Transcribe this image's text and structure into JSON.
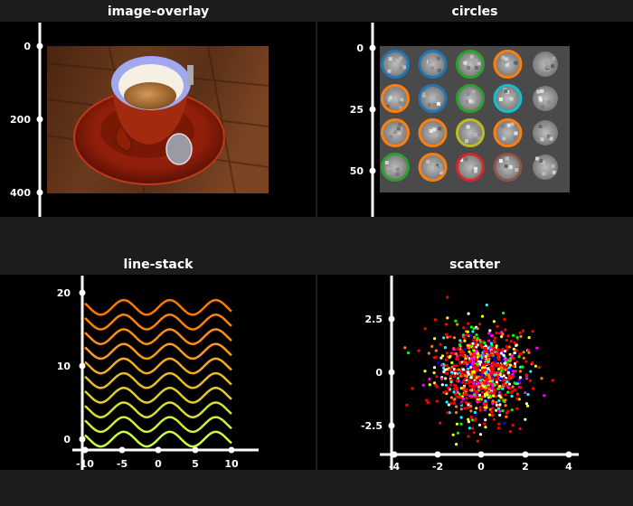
{
  "colors": {
    "figure_bg": "#1c1c1c",
    "panel_bg": "#000000",
    "axis": "#ffffff",
    "text": "#ffffff",
    "circle_palette": [
      "#1f77b4",
      "#ff7f0e",
      "#2ca02c",
      "#d62728",
      "#17becf",
      "#bcbd22",
      "#8c564b"
    ],
    "scatter_palette": [
      "#ff0000",
      "#ffff00",
      "#ff7f0e",
      "#00ffff",
      "#ff00ff",
      "#0000ff",
      "#00ff00",
      "#ffffff"
    ],
    "line_stack_gradient": [
      "#c8ff46",
      "#ff9619",
      "#ff7800"
    ]
  },
  "chart_data": [
    {
      "type": "image",
      "title": "image-overlay",
      "image_description_icon": "coffee-cup-photo",
      "y_ticks": [
        0,
        200,
        400
      ],
      "ylim": [
        0,
        420
      ],
      "xlabel": "",
      "ylabel": ""
    },
    {
      "type": "scatter",
      "title": "circles",
      "background": "grayscale digit-image grid (4 rows x 5 columns)",
      "y_ticks": [
        0,
        25,
        50
      ],
      "ylim": [
        0,
        62
      ],
      "circles": [
        {
          "row": 0,
          "col": 0,
          "color": "#1f77b4"
        },
        {
          "row": 0,
          "col": 1,
          "color": "#1f77b4"
        },
        {
          "row": 0,
          "col": 2,
          "color": "#2ca02c"
        },
        {
          "row": 0,
          "col": 3,
          "color": "#ff7f0e"
        },
        {
          "row": 1,
          "col": 0,
          "color": "#ff7f0e"
        },
        {
          "row": 1,
          "col": 1,
          "color": "#1f77b4"
        },
        {
          "row": 1,
          "col": 2,
          "color": "#2ca02c"
        },
        {
          "row": 1,
          "col": 3,
          "color": "#17becf"
        },
        {
          "row": 2,
          "col": 0,
          "color": "#ff7f0e"
        },
        {
          "row": 2,
          "col": 1,
          "color": "#ff7f0e"
        },
        {
          "row": 2,
          "col": 2,
          "color": "#bcbd22"
        },
        {
          "row": 2,
          "col": 3,
          "color": "#ff7f0e"
        },
        {
          "row": 3,
          "col": 0,
          "color": "#2ca02c"
        },
        {
          "row": 3,
          "col": 1,
          "color": "#ff7f0e"
        },
        {
          "row": 3,
          "col": 2,
          "color": "#d62728"
        },
        {
          "row": 3,
          "col": 3,
          "color": "#8c564b"
        }
      ],
      "xlabel": "",
      "ylabel": ""
    },
    {
      "type": "line",
      "title": "line-stack",
      "x_ticks": [
        -10,
        -5,
        0,
        5,
        10
      ],
      "y_ticks": [
        0,
        10,
        20
      ],
      "xlim": [
        -10,
        10
      ],
      "ylim": [
        -1.5,
        21
      ],
      "series_formula": "y = sin(x) + 2*i",
      "x_range": [
        -10,
        10
      ],
      "series_offsets": [
        0,
        2,
        4,
        6,
        8,
        10,
        12,
        14,
        16,
        18
      ],
      "xlabel": "",
      "ylabel": ""
    },
    {
      "type": "scatter",
      "title": "scatter",
      "x_ticks": [
        -4,
        -2,
        0,
        2,
        4
      ],
      "y_ticks": [
        2.5,
        0,
        -2.5
      ],
      "x_tick_labels": [
        "-4",
        "-2",
        "0",
        "2",
        "4"
      ],
      "y_tick_labels": [
        "2.5",
        "0",
        "-2.5"
      ],
      "xlim": [
        -4.2,
        4.5
      ],
      "ylim": [
        -3.9,
        4.5
      ],
      "distribution": "standard normal, about 1000 points",
      "xlabel": "",
      "ylabel": ""
    }
  ]
}
